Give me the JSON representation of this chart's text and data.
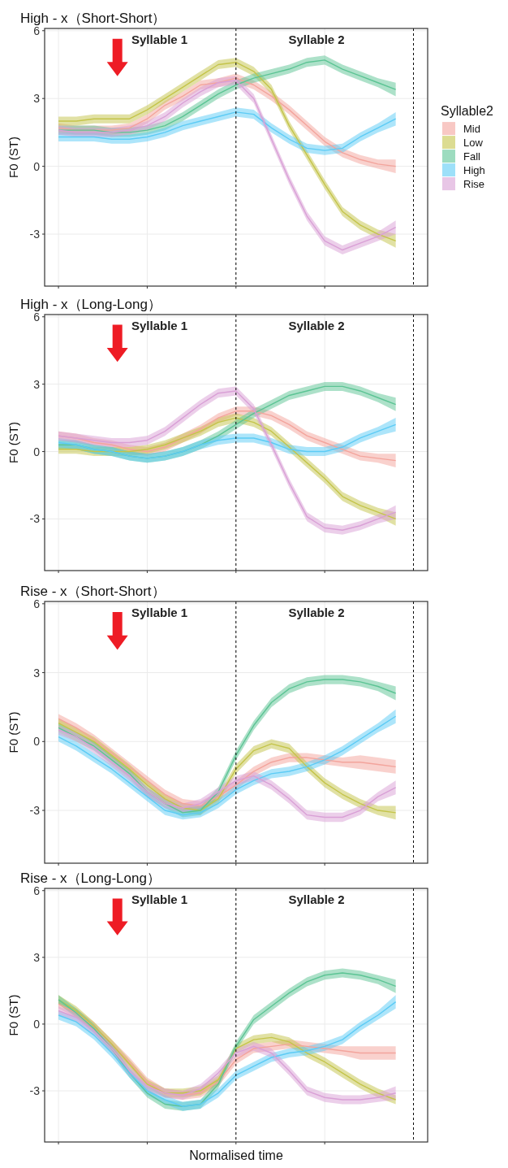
{
  "chart_data": [
    {
      "type": "line",
      "title": "High - x（Short-Short）",
      "ylabel": "F0 (ST)",
      "legend_title": "Syllable2",
      "legend": "right",
      "grid": true,
      "tick_labels": "y",
      "marker": "none",
      "line_style": "solid",
      "categories": [
        null,
        null,
        null,
        null,
        null,
        null,
        null,
        null,
        null,
        null,
        null,
        null,
        null,
        null,
        null,
        null,
        null,
        null,
        null,
        null
      ],
      "ylim": [
        -5.3,
        6.1
      ],
      "yticks": [
        -3,
        0,
        3,
        6
      ],
      "annotations": [
        "Syllable 1",
        "Syllable 2"
      ],
      "series": [
        {
          "name": "Mid",
          "color": "#f3a49c",
          "values": [
            1.7,
            1.6,
            1.6,
            1.6,
            1.7,
            2.1,
            2.7,
            3.1,
            3.6,
            3.7,
            3.9,
            3.6,
            3.1,
            2.5,
            1.8,
            1.1,
            0.6,
            0.3,
            0.1,
            0.0
          ],
          "lower": [
            1.5,
            1.4,
            1.4,
            1.4,
            1.5,
            1.9,
            2.5,
            2.9,
            3.4,
            3.5,
            3.7,
            3.4,
            2.9,
            2.3,
            1.6,
            0.9,
            0.4,
            0.1,
            -0.1,
            -0.3
          ],
          "upper": [
            1.9,
            1.8,
            1.8,
            1.8,
            1.9,
            2.3,
            2.9,
            3.3,
            3.8,
            3.9,
            4.1,
            3.8,
            3.3,
            2.7,
            2.0,
            1.3,
            0.8,
            0.5,
            0.3,
            0.3
          ]
        },
        {
          "name": "Low",
          "color": "#c4c44a",
          "values": [
            2.0,
            2.0,
            2.1,
            2.1,
            2.1,
            2.5,
            3.0,
            3.5,
            4.0,
            4.5,
            4.6,
            4.2,
            3.4,
            1.8,
            0.5,
            -0.8,
            -2.0,
            -2.6,
            -3.0,
            -3.3
          ],
          "lower": [
            1.8,
            1.8,
            1.9,
            1.9,
            1.9,
            2.3,
            2.8,
            3.3,
            3.8,
            4.3,
            4.4,
            4.0,
            3.2,
            1.6,
            0.3,
            -1.0,
            -2.2,
            -2.8,
            -3.2,
            -3.6
          ],
          "upper": [
            2.2,
            2.2,
            2.3,
            2.3,
            2.3,
            2.7,
            3.2,
            3.7,
            4.2,
            4.7,
            4.8,
            4.4,
            3.6,
            2.0,
            0.7,
            -0.6,
            -1.8,
            -2.4,
            -2.8,
            -3.0
          ]
        },
        {
          "name": "Fall",
          "color": "#5cc494",
          "values": [
            1.6,
            1.6,
            1.6,
            1.5,
            1.5,
            1.6,
            1.8,
            2.2,
            2.7,
            3.2,
            3.6,
            3.9,
            4.1,
            4.3,
            4.6,
            4.7,
            4.3,
            4.0,
            3.7,
            3.4
          ],
          "lower": [
            1.4,
            1.4,
            1.4,
            1.3,
            1.3,
            1.4,
            1.6,
            2.0,
            2.5,
            3.0,
            3.4,
            3.7,
            3.9,
            4.1,
            4.4,
            4.5,
            4.1,
            3.8,
            3.5,
            3.1
          ],
          "upper": [
            1.8,
            1.8,
            1.8,
            1.7,
            1.7,
            1.8,
            2.0,
            2.4,
            2.9,
            3.4,
            3.8,
            4.1,
            4.3,
            4.5,
            4.8,
            4.9,
            4.5,
            4.2,
            3.9,
            3.7
          ]
        },
        {
          "name": "High",
          "color": "#5ccbf5",
          "values": [
            1.3,
            1.3,
            1.3,
            1.2,
            1.2,
            1.3,
            1.5,
            1.8,
            2.0,
            2.2,
            2.4,
            2.3,
            1.7,
            1.2,
            0.8,
            0.7,
            0.8,
            1.3,
            1.7,
            2.1
          ],
          "lower": [
            1.1,
            1.1,
            1.1,
            1.0,
            1.0,
            1.1,
            1.3,
            1.6,
            1.8,
            2.0,
            2.2,
            2.1,
            1.5,
            1.0,
            0.6,
            0.5,
            0.6,
            1.1,
            1.5,
            1.8
          ],
          "upper": [
            1.5,
            1.5,
            1.5,
            1.4,
            1.4,
            1.5,
            1.7,
            2.0,
            2.2,
            2.4,
            2.6,
            2.5,
            1.9,
            1.4,
            1.0,
            0.9,
            1.0,
            1.5,
            1.9,
            2.4
          ]
        },
        {
          "name": "Rise",
          "color": "#d9a0d6",
          "values": [
            1.6,
            1.5,
            1.5,
            1.5,
            1.6,
            1.8,
            2.2,
            2.8,
            3.3,
            3.7,
            3.8,
            3.0,
            1.2,
            -0.6,
            -2.2,
            -3.3,
            -3.7,
            -3.4,
            -3.1,
            -2.7
          ],
          "lower": [
            1.4,
            1.3,
            1.3,
            1.3,
            1.4,
            1.6,
            2.0,
            2.6,
            3.1,
            3.5,
            3.6,
            2.8,
            1.0,
            -0.8,
            -2.4,
            -3.5,
            -3.9,
            -3.6,
            -3.3,
            -3.0
          ],
          "upper": [
            1.8,
            1.7,
            1.7,
            1.7,
            1.8,
            2.0,
            2.4,
            3.0,
            3.5,
            3.9,
            4.0,
            3.2,
            1.4,
            -0.4,
            -2.0,
            -3.1,
            -3.5,
            -3.2,
            -2.9,
            -2.4
          ]
        }
      ]
    },
    {
      "type": "line",
      "title": "High - x（Long-Long）",
      "ylabel": "F0 (ST)",
      "grid": true,
      "tick_labels": "y",
      "marker": "none",
      "line_style": "solid",
      "categories": [
        null,
        null,
        null,
        null,
        null,
        null,
        null,
        null,
        null,
        null,
        null,
        null,
        null,
        null,
        null,
        null,
        null,
        null,
        null,
        null
      ],
      "ylim": [
        -5.3,
        6.1
      ],
      "yticks": [
        -3,
        0,
        3,
        6
      ],
      "annotations": [
        "Syllable 1",
        "Syllable 2"
      ],
      "series": [
        {
          "color": "#f3a49c",
          "values": [
            0.7,
            0.6,
            0.4,
            0.3,
            0.1,
            0.0,
            0.2,
            0.6,
            1.0,
            1.5,
            1.8,
            1.8,
            1.6,
            1.2,
            0.7,
            0.4,
            0.1,
            -0.2,
            -0.3,
            -0.4
          ],
          "lower": [
            0.5,
            0.4,
            0.2,
            0.1,
            -0.1,
            -0.2,
            0.0,
            0.4,
            0.8,
            1.3,
            1.6,
            1.6,
            1.4,
            1.0,
            0.5,
            0.2,
            -0.1,
            -0.4,
            -0.5,
            -0.7
          ],
          "upper": [
            0.9,
            0.8,
            0.6,
            0.5,
            0.3,
            0.2,
            0.4,
            0.8,
            1.2,
            1.7,
            2.0,
            2.0,
            1.8,
            1.4,
            0.9,
            0.6,
            0.3,
            0.0,
            -0.1,
            -0.1
          ]
        },
        {
          "color": "#c4c44a",
          "values": [
            0.1,
            0.1,
            0.0,
            0.0,
            0.0,
            0.1,
            0.3,
            0.6,
            0.9,
            1.3,
            1.5,
            1.3,
            0.9,
            0.2,
            -0.5,
            -1.2,
            -2.0,
            -2.4,
            -2.7,
            -3.0
          ],
          "lower": [
            -0.1,
            -0.1,
            -0.2,
            -0.2,
            -0.2,
            -0.1,
            0.1,
            0.4,
            0.7,
            1.1,
            1.3,
            1.1,
            0.7,
            0.0,
            -0.7,
            -1.4,
            -2.2,
            -2.6,
            -2.9,
            -3.3
          ],
          "upper": [
            0.3,
            0.3,
            0.2,
            0.2,
            0.2,
            0.3,
            0.5,
            0.8,
            1.1,
            1.5,
            1.7,
            1.5,
            1.1,
            0.4,
            -0.3,
            -1.0,
            -1.8,
            -2.2,
            -2.5,
            -2.7
          ]
        },
        {
          "color": "#5cc494",
          "values": [
            0.3,
            0.3,
            0.1,
            0.0,
            -0.2,
            -0.3,
            -0.2,
            0.0,
            0.3,
            0.7,
            1.2,
            1.7,
            2.1,
            2.5,
            2.7,
            2.9,
            2.9,
            2.7,
            2.4,
            2.1
          ],
          "lower": [
            0.1,
            0.1,
            -0.1,
            -0.2,
            -0.4,
            -0.5,
            -0.4,
            -0.2,
            0.1,
            0.5,
            1.0,
            1.5,
            1.9,
            2.3,
            2.5,
            2.7,
            2.7,
            2.5,
            2.2,
            1.8
          ],
          "upper": [
            0.5,
            0.5,
            0.3,
            0.2,
            0.0,
            -0.1,
            0.0,
            0.2,
            0.5,
            0.9,
            1.4,
            1.9,
            2.3,
            2.7,
            2.9,
            3.1,
            3.1,
            2.9,
            2.6,
            2.4
          ]
        },
        {
          "color": "#5ccbf5",
          "values": [
            0.4,
            0.3,
            0.1,
            0.0,
            -0.2,
            -0.3,
            -0.2,
            0.0,
            0.3,
            0.5,
            0.6,
            0.6,
            0.4,
            0.1,
            0.0,
            0.0,
            0.2,
            0.6,
            0.9,
            1.2
          ],
          "lower": [
            0.2,
            0.1,
            -0.1,
            -0.2,
            -0.4,
            -0.5,
            -0.4,
            -0.2,
            0.1,
            0.3,
            0.4,
            0.4,
            0.2,
            -0.1,
            -0.2,
            -0.2,
            0.0,
            0.4,
            0.7,
            0.9
          ],
          "upper": [
            0.6,
            0.5,
            0.3,
            0.2,
            0.0,
            -0.1,
            0.0,
            0.2,
            0.5,
            0.7,
            0.8,
            0.8,
            0.6,
            0.3,
            0.2,
            0.2,
            0.4,
            0.8,
            1.1,
            1.5
          ]
        },
        {
          "color": "#d9a0d6",
          "values": [
            0.7,
            0.6,
            0.5,
            0.4,
            0.4,
            0.5,
            0.9,
            1.5,
            2.1,
            2.6,
            2.7,
            1.9,
            0.3,
            -1.4,
            -2.9,
            -3.4,
            -3.5,
            -3.3,
            -3.0,
            -2.7
          ],
          "lower": [
            0.5,
            0.4,
            0.3,
            0.2,
            0.2,
            0.3,
            0.7,
            1.3,
            1.9,
            2.4,
            2.5,
            1.7,
            0.1,
            -1.6,
            -3.1,
            -3.6,
            -3.7,
            -3.5,
            -3.2,
            -3.0
          ],
          "upper": [
            0.9,
            0.8,
            0.7,
            0.6,
            0.6,
            0.7,
            1.1,
            1.7,
            2.3,
            2.8,
            2.9,
            2.1,
            0.5,
            -1.2,
            -2.7,
            -3.2,
            -3.3,
            -3.1,
            -2.8,
            -2.4
          ]
        }
      ]
    },
    {
      "type": "line",
      "title": "Rise - x（Short-Short）",
      "ylabel": "F0 (ST)",
      "grid": true,
      "tick_labels": "y",
      "marker": "none",
      "line_style": "solid",
      "categories": [
        null,
        null,
        null,
        null,
        null,
        null,
        null,
        null,
        null,
        null,
        null,
        null,
        null,
        null,
        null,
        null,
        null,
        null,
        null,
        null
      ],
      "ylim": [
        -5.3,
        6.1
      ],
      "yticks": [
        -3,
        0,
        3,
        6
      ],
      "annotations": [
        "Syllable 1",
        "Syllable 2"
      ],
      "series": [
        {
          "color": "#f3a49c",
          "values": [
            1.0,
            0.6,
            0.1,
            -0.5,
            -1.1,
            -1.7,
            -2.3,
            -2.7,
            -2.8,
            -2.4,
            -1.9,
            -1.3,
            -0.9,
            -0.7,
            -0.7,
            -0.8,
            -0.9,
            -0.9,
            -1.0,
            -1.1
          ],
          "lower": [
            0.8,
            0.4,
            -0.1,
            -0.7,
            -1.3,
            -1.9,
            -2.5,
            -2.9,
            -3.0,
            -2.6,
            -2.1,
            -1.5,
            -1.1,
            -0.9,
            -0.9,
            -1.0,
            -1.1,
            -1.2,
            -1.3,
            -1.4
          ],
          "upper": [
            1.2,
            0.8,
            0.3,
            -0.3,
            -0.9,
            -1.5,
            -2.1,
            -2.5,
            -2.6,
            -2.2,
            -1.7,
            -1.1,
            -0.7,
            -0.5,
            -0.5,
            -0.6,
            -0.7,
            -0.6,
            -0.7,
            -0.8
          ]
        },
        {
          "color": "#c4c44a",
          "values": [
            0.8,
            0.4,
            0.0,
            -0.6,
            -1.2,
            -1.9,
            -2.5,
            -2.9,
            -3.0,
            -2.5,
            -1.2,
            -0.4,
            -0.1,
            -0.3,
            -1.1,
            -1.8,
            -2.3,
            -2.7,
            -3.0,
            -3.1
          ],
          "lower": [
            0.6,
            0.2,
            -0.2,
            -0.8,
            -1.4,
            -2.1,
            -2.7,
            -3.1,
            -3.2,
            -2.7,
            -1.4,
            -0.6,
            -0.3,
            -0.5,
            -1.3,
            -2.0,
            -2.5,
            -2.9,
            -3.2,
            -3.4
          ],
          "upper": [
            1.0,
            0.6,
            0.2,
            -0.4,
            -1.0,
            -1.7,
            -2.3,
            -2.7,
            -2.8,
            -2.3,
            -1.0,
            -0.2,
            0.1,
            -0.1,
            -0.9,
            -1.6,
            -2.1,
            -2.5,
            -2.8,
            -2.8
          ]
        },
        {
          "color": "#5cc494",
          "values": [
            0.6,
            0.2,
            -0.2,
            -0.8,
            -1.4,
            -2.2,
            -2.7,
            -3.1,
            -3.0,
            -2.2,
            -0.6,
            0.7,
            1.7,
            2.3,
            2.6,
            2.7,
            2.7,
            2.6,
            2.4,
            2.1
          ],
          "lower": [
            0.4,
            0.0,
            -0.4,
            -1.0,
            -1.6,
            -2.4,
            -2.9,
            -3.3,
            -3.2,
            -2.4,
            -0.8,
            0.5,
            1.5,
            2.1,
            2.4,
            2.5,
            2.5,
            2.4,
            2.2,
            1.8
          ],
          "upper": [
            0.8,
            0.4,
            0.0,
            -0.6,
            -1.2,
            -2.0,
            -2.5,
            -2.9,
            -2.8,
            -2.0,
            -0.4,
            0.9,
            1.9,
            2.5,
            2.8,
            2.9,
            2.9,
            2.8,
            2.6,
            2.4
          ]
        },
        {
          "color": "#5ccbf5",
          "values": [
            0.2,
            -0.2,
            -0.7,
            -1.2,
            -1.8,
            -2.4,
            -3.0,
            -3.2,
            -3.1,
            -2.7,
            -2.1,
            -1.7,
            -1.4,
            -1.3,
            -1.1,
            -0.8,
            -0.4,
            0.1,
            0.6,
            1.1
          ],
          "lower": [
            0.0,
            -0.4,
            -0.9,
            -1.4,
            -2.0,
            -2.6,
            -3.2,
            -3.4,
            -3.3,
            -2.9,
            -2.3,
            -1.9,
            -1.6,
            -1.5,
            -1.3,
            -1.0,
            -0.6,
            -0.1,
            0.4,
            0.8
          ],
          "upper": [
            0.4,
            0.0,
            -0.5,
            -1.0,
            -1.6,
            -2.2,
            -2.8,
            -3.0,
            -2.9,
            -2.5,
            -1.9,
            -1.5,
            -1.2,
            -1.1,
            -0.9,
            -0.6,
            -0.2,
            0.3,
            0.8,
            1.4
          ]
        },
        {
          "color": "#d9a0d6",
          "values": [
            0.5,
            0.2,
            -0.3,
            -0.9,
            -1.5,
            -2.2,
            -2.7,
            -2.9,
            -2.7,
            -2.2,
            -1.7,
            -1.5,
            -1.9,
            -2.5,
            -3.2,
            -3.3,
            -3.3,
            -3.0,
            -2.4,
            -2.0
          ],
          "lower": [
            0.3,
            0.0,
            -0.5,
            -1.1,
            -1.7,
            -2.4,
            -2.9,
            -3.1,
            -2.9,
            -2.4,
            -1.9,
            -1.7,
            -2.1,
            -2.7,
            -3.4,
            -3.5,
            -3.5,
            -3.2,
            -2.6,
            -2.3
          ],
          "upper": [
            0.7,
            0.4,
            -0.1,
            -0.7,
            -1.3,
            -2.0,
            -2.5,
            -2.7,
            -2.5,
            -2.0,
            -1.5,
            -1.3,
            -1.7,
            -2.3,
            -3.0,
            -3.1,
            -3.1,
            -2.8,
            -2.2,
            -1.7
          ]
        }
      ]
    },
    {
      "type": "line",
      "title": "Rise - x（Long-Long）",
      "ylabel": "F0 (ST)",
      "xlabel": "Normalised time",
      "grid": true,
      "tick_labels": "y",
      "marker": "none",
      "line_style": "solid",
      "categories": [
        null,
        null,
        null,
        null,
        null,
        null,
        null,
        null,
        null,
        null,
        null,
        null,
        null,
        null,
        null,
        null,
        null,
        null,
        null,
        null
      ],
      "ylim": [
        -5.3,
        6.1
      ],
      "yticks": [
        -3,
        0,
        3,
        6
      ],
      "annotations": [
        "Syllable 1",
        "Syllable 2"
      ],
      "series": [
        {
          "color": "#f3a49c",
          "values": [
            0.9,
            0.5,
            -0.1,
            -0.9,
            -1.7,
            -2.6,
            -3.1,
            -3.2,
            -3.1,
            -2.6,
            -1.6,
            -1.1,
            -1.0,
            -0.9,
            -1.0,
            -1.1,
            -1.2,
            -1.3,
            -1.3,
            -1.3
          ],
          "lower": [
            0.7,
            0.3,
            -0.3,
            -1.1,
            -1.9,
            -2.8,
            -3.3,
            -3.4,
            -3.3,
            -2.8,
            -1.8,
            -1.3,
            -1.2,
            -1.1,
            -1.2,
            -1.3,
            -1.4,
            -1.6,
            -1.6,
            -1.6
          ],
          "upper": [
            1.1,
            0.7,
            0.1,
            -0.7,
            -1.5,
            -2.4,
            -2.9,
            -3.0,
            -2.9,
            -2.4,
            -1.4,
            -0.9,
            -0.8,
            -0.7,
            -0.8,
            -0.9,
            -1.0,
            -1.0,
            -1.0,
            -1.0
          ]
        },
        {
          "color": "#c4c44a",
          "values": [
            1.1,
            0.6,
            -0.1,
            -0.9,
            -1.8,
            -2.7,
            -3.1,
            -3.1,
            -3.0,
            -2.5,
            -1.1,
            -0.7,
            -0.6,
            -0.8,
            -1.3,
            -1.7,
            -2.2,
            -2.7,
            -3.1,
            -3.4
          ],
          "lower": [
            0.9,
            0.4,
            -0.3,
            -1.1,
            -2.0,
            -2.9,
            -3.3,
            -3.3,
            -3.2,
            -2.7,
            -1.3,
            -0.9,
            -0.8,
            -1.0,
            -1.5,
            -1.9,
            -2.4,
            -2.9,
            -3.3,
            -3.6
          ],
          "upper": [
            1.3,
            0.8,
            0.1,
            -0.7,
            -1.6,
            -2.5,
            -2.9,
            -2.9,
            -2.8,
            -2.3,
            -0.9,
            -0.5,
            -0.4,
            -0.6,
            -1.1,
            -1.5,
            -2.0,
            -2.5,
            -2.9,
            -3.2
          ]
        },
        {
          "color": "#5cc494",
          "values": [
            1.1,
            0.5,
            -0.2,
            -1.1,
            -2.2,
            -3.1,
            -3.6,
            -3.7,
            -3.6,
            -2.7,
            -1.0,
            0.2,
            0.8,
            1.4,
            1.9,
            2.2,
            2.3,
            2.2,
            2.0,
            1.7
          ],
          "lower": [
            0.9,
            0.3,
            -0.4,
            -1.3,
            -2.4,
            -3.3,
            -3.8,
            -3.9,
            -3.8,
            -2.9,
            -1.2,
            0.0,
            0.6,
            1.2,
            1.7,
            2.0,
            2.1,
            2.0,
            1.8,
            1.4
          ],
          "upper": [
            1.3,
            0.7,
            0.0,
            -0.9,
            -2.0,
            -2.9,
            -3.4,
            -3.5,
            -3.4,
            -2.5,
            -0.8,
            0.4,
            1.0,
            1.6,
            2.1,
            2.4,
            2.5,
            2.4,
            2.2,
            2.0
          ]
        },
        {
          "color": "#5ccbf5",
          "values": [
            0.4,
            0.1,
            -0.5,
            -1.3,
            -2.2,
            -3.0,
            -3.4,
            -3.7,
            -3.6,
            -3.1,
            -2.3,
            -1.9,
            -1.5,
            -1.3,
            -1.2,
            -1.0,
            -0.7,
            -0.1,
            0.4,
            1.0
          ],
          "lower": [
            0.2,
            -0.1,
            -0.7,
            -1.5,
            -2.4,
            -3.2,
            -3.6,
            -3.9,
            -3.8,
            -3.3,
            -2.5,
            -2.1,
            -1.7,
            -1.5,
            -1.4,
            -1.2,
            -0.9,
            -0.3,
            0.2,
            0.7
          ],
          "upper": [
            0.6,
            0.3,
            -0.3,
            -1.1,
            -2.0,
            -2.8,
            -3.2,
            -3.5,
            -3.4,
            -2.9,
            -2.1,
            -1.7,
            -1.3,
            -1.1,
            -1.0,
            -0.8,
            -0.5,
            0.1,
            0.6,
            1.3
          ]
        },
        {
          "color": "#d9a0d6",
          "values": [
            0.6,
            0.3,
            -0.3,
            -1.1,
            -2.1,
            -2.8,
            -3.1,
            -3.2,
            -2.9,
            -2.2,
            -1.3,
            -1.0,
            -1.3,
            -2.1,
            -3.0,
            -3.3,
            -3.4,
            -3.4,
            -3.3,
            -3.1
          ],
          "lower": [
            0.4,
            0.1,
            -0.5,
            -1.3,
            -2.3,
            -3.0,
            -3.3,
            -3.4,
            -3.1,
            -2.4,
            -1.5,
            -1.2,
            -1.5,
            -2.3,
            -3.2,
            -3.5,
            -3.6,
            -3.6,
            -3.5,
            -3.4
          ],
          "upper": [
            0.8,
            0.5,
            -0.1,
            -0.9,
            -1.9,
            -2.6,
            -2.9,
            -3.0,
            -2.7,
            -2.0,
            -1.1,
            -0.8,
            -1.1,
            -1.9,
            -2.8,
            -3.1,
            -3.2,
            -3.2,
            -3.1,
            -2.8
          ]
        }
      ]
    }
  ]
}
